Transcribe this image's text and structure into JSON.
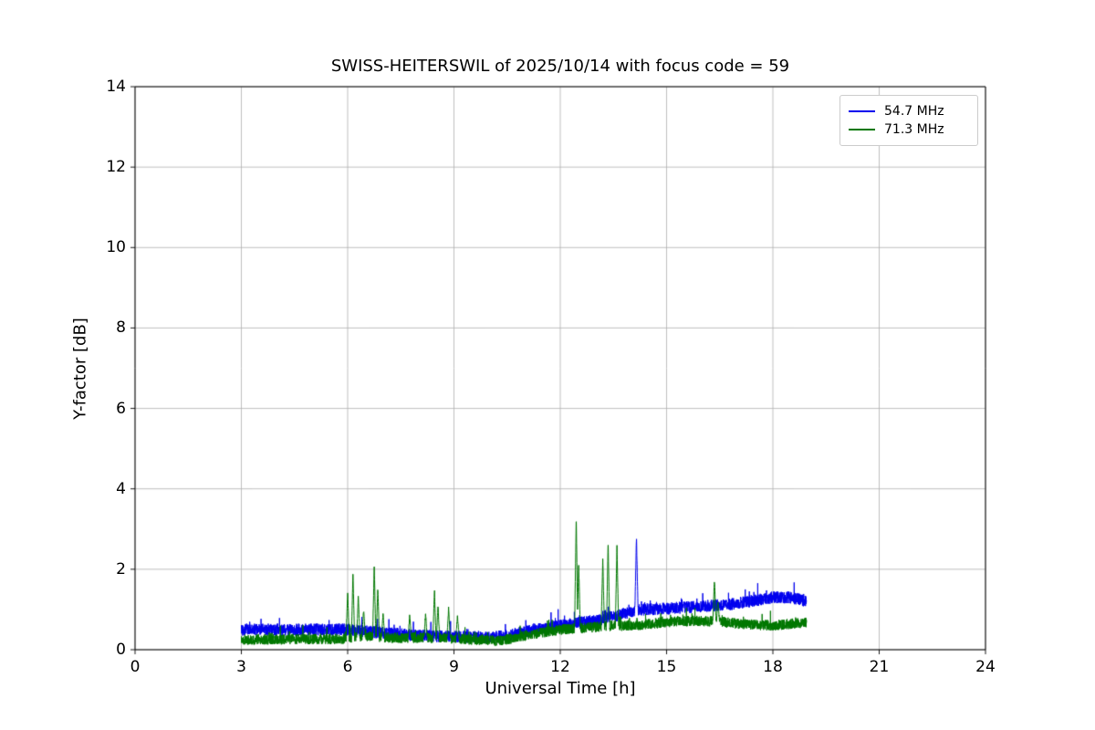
{
  "chart_data": {
    "type": "line",
    "title": "SWISS-HEITERSWIL of 2025/10/14 with focus code = 59",
    "xlabel": "Universal Time [h]",
    "ylabel": "Y-factor [dB]",
    "xlim": [
      0,
      24
    ],
    "ylim": [
      0,
      14
    ],
    "xticks": [
      0,
      3,
      6,
      9,
      12,
      15,
      18,
      21,
      24
    ],
    "yticks": [
      0,
      2,
      4,
      6,
      8,
      10,
      12,
      14
    ],
    "grid": true,
    "grid_color": "#b0b0b0",
    "legend_position": "upper right",
    "series": [
      {
        "name": "54.7 MHz",
        "color": "#0000ee",
        "seed": 42,
        "x_range": [
          3.0,
          18.95
        ],
        "noise_amplitude": 0.15,
        "baseline": [
          [
            3.0,
            0.5
          ],
          [
            6.0,
            0.5
          ],
          [
            7.0,
            0.42
          ],
          [
            8.0,
            0.35
          ],
          [
            9.0,
            0.33
          ],
          [
            10.0,
            0.3
          ],
          [
            10.5,
            0.35
          ],
          [
            11.0,
            0.45
          ],
          [
            12.0,
            0.6
          ],
          [
            13.0,
            0.72
          ],
          [
            13.8,
            0.9
          ],
          [
            14.3,
            1.0
          ],
          [
            15.0,
            1.02
          ],
          [
            16.0,
            1.08
          ],
          [
            17.0,
            1.15
          ],
          [
            18.0,
            1.3
          ],
          [
            18.5,
            1.3
          ],
          [
            18.95,
            1.2
          ]
        ],
        "spikes": [
          [
            14.15,
            2.8
          ]
        ]
      },
      {
        "name": "71.3 MHz",
        "color": "#007700",
        "seed": 1337,
        "x_range": [
          3.0,
          18.95
        ],
        "noise_amplitude": 0.13,
        "baseline": [
          [
            3.0,
            0.25
          ],
          [
            5.8,
            0.27
          ],
          [
            6.5,
            0.35
          ],
          [
            7.2,
            0.3
          ],
          [
            8.0,
            0.3
          ],
          [
            9.0,
            0.28
          ],
          [
            9.5,
            0.25
          ],
          [
            10.3,
            0.22
          ],
          [
            11.0,
            0.35
          ],
          [
            12.0,
            0.5
          ],
          [
            12.8,
            0.55
          ],
          [
            13.5,
            0.6
          ],
          [
            14.0,
            0.6
          ],
          [
            15.0,
            0.68
          ],
          [
            15.8,
            0.72
          ],
          [
            16.5,
            0.7
          ],
          [
            17.0,
            0.65
          ],
          [
            18.0,
            0.6
          ],
          [
            18.95,
            0.68
          ]
        ],
        "spikes": [
          [
            6.0,
            1.45
          ],
          [
            6.15,
            1.9
          ],
          [
            6.3,
            1.35
          ],
          [
            6.45,
            1.0
          ],
          [
            6.75,
            2.1
          ],
          [
            6.85,
            1.55
          ],
          [
            7.0,
            0.9
          ],
          [
            7.75,
            0.85
          ],
          [
            8.2,
            0.9
          ],
          [
            8.45,
            1.5
          ],
          [
            8.55,
            1.1
          ],
          [
            8.85,
            1.05
          ],
          [
            9.1,
            0.85
          ],
          [
            12.45,
            3.3
          ],
          [
            12.52,
            2.1
          ],
          [
            13.2,
            2.25
          ],
          [
            13.35,
            2.7
          ],
          [
            13.6,
            2.6
          ],
          [
            16.35,
            1.75
          ],
          [
            16.45,
            1.2
          ]
        ]
      }
    ]
  }
}
